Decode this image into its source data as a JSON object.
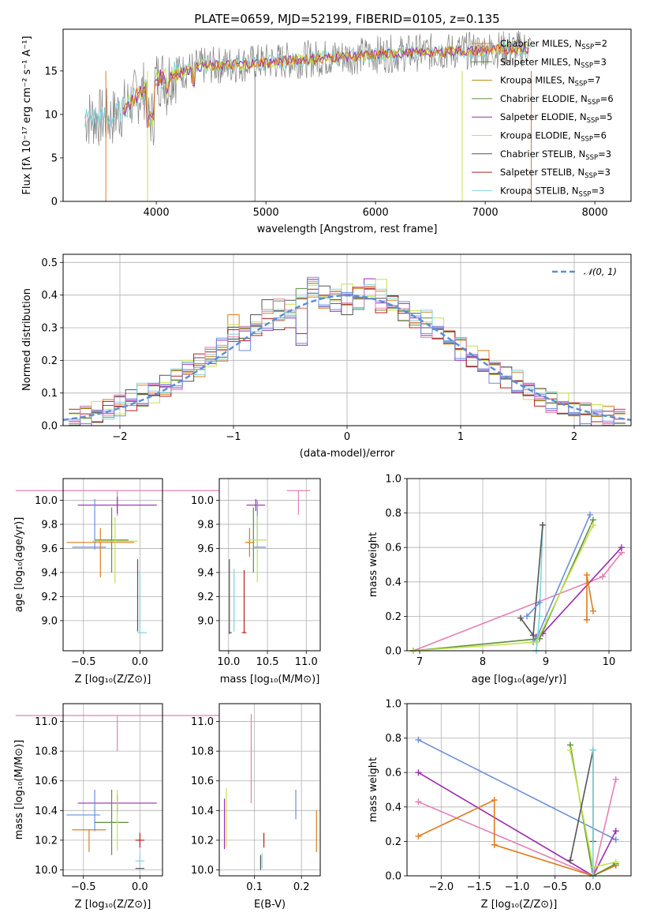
{
  "title": "PLATE=0659, MJD=52199, FIBERID=0105, z=0.135",
  "colors": [
    "#e07b1a",
    "#5f8f3a",
    "#9a2cae",
    "#c3e34a",
    "#555555",
    "#b81d1d",
    "#7fd3dc",
    "#e67fb5",
    "#6a8fde"
  ],
  "spectrum": {
    "xlabel": "wavelength [Angstrom, rest frame]",
    "ylabel": "Flux [fλ 10⁻¹⁷ erg cm⁻² s⁻¹ A⁻¹]",
    "xlim": [
      3150,
      8330
    ],
    "ylim": [
      0,
      19.8
    ],
    "xticks": [
      4000,
      5000,
      6000,
      7000,
      8000
    ],
    "yticks": [
      0,
      5,
      10,
      15
    ],
    "legend": [
      {
        "base": "Chabrier MILES, N",
        "sub": "SSP",
        "tail": "=2",
        "color": "#e07b1a"
      },
      {
        "base": "Salpeter MILES, N",
        "sub": "SSP",
        "tail": "=3",
        "color": "#5f8f3a"
      },
      {
        "base": "Kroupa MILES, N",
        "sub": "SSP",
        "tail": "=7",
        "color": "#b8860b"
      },
      {
        "base": "Chabrier ELODIE, N",
        "sub": "SSP",
        "tail": "=6",
        "color": "#5f8f3a"
      },
      {
        "base": "Salpeter ELODIE, N",
        "sub": "SSP",
        "tail": "=5",
        "color": "#9a2cae"
      },
      {
        "base": "Kroupa ELODIE, N",
        "sub": "SSP",
        "tail": "=6",
        "color": "#c3e34a"
      },
      {
        "base": "Chabrier STELIB, N",
        "sub": "SSP",
        "tail": "=3",
        "color": "#555555"
      },
      {
        "base": "Salpeter STELIB, N",
        "sub": "SSP",
        "tail": "=3",
        "color": "#b81d1d"
      },
      {
        "base": "Kroupa STELIB, N",
        "sub": "SSP",
        "tail": "=3",
        "color": "#7fd3dc"
      }
    ],
    "spikes": [
      {
        "x": 3540,
        "color": "#e07b1a"
      },
      {
        "x": 3920,
        "color": "#c3e34a"
      },
      {
        "x": 4900,
        "color": "#888888"
      },
      {
        "x": 6790,
        "color": "#c3e34a"
      },
      {
        "x": 7420,
        "color": "#e07b1a"
      }
    ]
  },
  "histogram": {
    "xlabel": "(data-model)/error",
    "ylabel": "Normed distribution",
    "xlim": [
      -2.5,
      2.5
    ],
    "ylim": [
      0,
      0.525
    ],
    "xticks": [
      -2,
      -1,
      0,
      1,
      2
    ],
    "yticks": [
      0.0,
      0.1,
      0.2,
      0.3,
      0.4,
      0.5
    ],
    "legend_label": "𝒩(0, 1)",
    "gauss_color": "#5b8fd6",
    "centers": [
      -2.4,
      -2.3,
      -2.2,
      -2.1,
      -2.0,
      -1.9,
      -1.8,
      -1.7,
      -1.6,
      -1.5,
      -1.4,
      -1.3,
      -1.2,
      -1.1,
      -1.0,
      -0.9,
      -0.8,
      -0.7,
      -0.6,
      -0.5,
      -0.4,
      -0.3,
      -0.2,
      -0.1,
      0.0,
      0.1,
      0.2,
      0.3,
      0.4,
      0.5,
      0.6,
      0.7,
      0.8,
      0.9,
      1.0,
      1.1,
      1.2,
      1.3,
      1.4,
      1.5,
      1.6,
      1.7,
      1.8,
      1.9,
      2.0,
      2.1,
      2.2,
      2.3,
      2.4
    ],
    "series": [
      [
        0.03,
        0.04,
        0.05,
        0.05,
        0.06,
        0.08,
        0.1,
        0.1,
        0.12,
        0.15,
        0.17,
        0.18,
        0.2,
        0.21,
        0.31,
        0.29,
        0.3,
        0.32,
        0.35,
        0.36,
        0.37,
        0.4,
        0.39,
        0.4,
        0.41,
        0.39,
        0.42,
        0.43,
        0.36,
        0.35,
        0.34,
        0.33,
        0.3,
        0.28,
        0.25,
        0.22,
        0.2,
        0.18,
        0.16,
        0.14,
        0.11,
        0.1,
        0.08,
        0.07,
        0.06,
        0.05,
        0.04,
        0.03,
        0.03
      ],
      [
        0.02,
        0.03,
        0.04,
        0.05,
        0.07,
        0.08,
        0.09,
        0.11,
        0.13,
        0.14,
        0.16,
        0.19,
        0.21,
        0.24,
        0.29,
        0.28,
        0.31,
        0.38,
        0.37,
        0.36,
        0.39,
        0.43,
        0.41,
        0.38,
        0.37,
        0.38,
        0.4,
        0.36,
        0.39,
        0.34,
        0.32,
        0.3,
        0.29,
        0.27,
        0.24,
        0.21,
        0.19,
        0.17,
        0.15,
        0.13,
        0.11,
        0.09,
        0.07,
        0.06,
        0.05,
        0.04,
        0.03,
        0.02,
        0.02
      ],
      [
        0.02,
        0.03,
        0.03,
        0.05,
        0.06,
        0.07,
        0.08,
        0.1,
        0.12,
        0.14,
        0.17,
        0.19,
        0.22,
        0.25,
        0.27,
        0.26,
        0.3,
        0.31,
        0.3,
        0.33,
        0.27,
        0.43,
        0.37,
        0.38,
        0.39,
        0.4,
        0.42,
        0.37,
        0.38,
        0.35,
        0.33,
        0.3,
        0.28,
        0.26,
        0.23,
        0.2,
        0.18,
        0.16,
        0.14,
        0.12,
        0.1,
        0.09,
        0.07,
        0.05,
        0.04,
        0.03,
        0.03,
        0.02,
        0.02
      ]
    ]
  },
  "age_z": {
    "xlabel": "Z [log₁₀(Z/Z⊙)]",
    "ylabel": "age [log₁₀(age/yr)]",
    "xlim": [
      -0.68,
      0.2
    ],
    "ylim": [
      8.75,
      10.18
    ],
    "xticks": [
      -0.5,
      0.0
    ],
    "xticklabels": [
      "−0.5",
      "0.0"
    ],
    "yticks": [
      9.0,
      9.2,
      9.4,
      9.6,
      9.8,
      10.0
    ],
    "yticklabels": [
      "9.0",
      "9.2",
      "9.4",
      "9.6",
      "9.8",
      "10.0"
    ],
    "errorbars": [
      {
        "x": -0.2,
        "xerr": 0.9,
        "y": 10.08,
        "yerr": [
          0.21,
          0.0
        ],
        "color": "#e67fb5"
      },
      {
        "x": -0.2,
        "xerr": 0.35,
        "y": 9.96,
        "yerr": [
          0.07,
          0.07
        ],
        "color": "#9a2cae"
      },
      {
        "x": -0.4,
        "xerr": 0.0,
        "y": 9.8,
        "yerr": [
          0.21,
          0.21
        ],
        "color": "#6a8fde"
      },
      {
        "x": -0.25,
        "xerr": 0.15,
        "y": 9.67,
        "yerr": [
          0.27,
          0.27
        ],
        "color": "#5f8f3a"
      },
      {
        "x": -0.35,
        "xerr": 0.3,
        "y": 9.65,
        "yerr": [
          0.29,
          0.12
        ],
        "color": "#e07b1a"
      },
      {
        "x": -0.22,
        "xerr": 0.2,
        "y": 9.66,
        "yerr": [
          0.35,
          0.2
        ],
        "color": "#c3e34a"
      },
      {
        "x": -0.45,
        "xerr": 0.15,
        "y": 9.61,
        "yerr": [
          0.0,
          0.0
        ],
        "color": "#6a8fde"
      },
      {
        "x": -0.02,
        "xerr": 0.0,
        "y": 9.2,
        "yerr": [
          0.29,
          0.31
        ],
        "color": "#555555"
      },
      {
        "x": 0.0,
        "xerr": 0.0,
        "y": 9.16,
        "yerr": [
          0.26,
          0.26
        ],
        "color": "#7fd3dc"
      },
      {
        "x": 0.02,
        "xerr": 0.0,
        "y": 8.9,
        "yerr": [
          0.0,
          0.0
        ],
        "color": "#7fd3dc"
      }
    ]
  },
  "age_mass": {
    "xlabel": "mass [log₁₀(M/M⊙)]",
    "ylabel": "",
    "xlim": [
      9.88,
      11.18
    ],
    "ylim": [
      8.75,
      10.18
    ],
    "xticks": [
      10.0,
      10.5,
      11.0
    ],
    "xticklabels": [
      "10.0",
      "10.5",
      "11.0"
    ],
    "yticks": [
      9.0,
      9.2,
      9.4,
      9.6,
      9.8,
      10.0
    ],
    "yticklabels": [
      "9.0",
      "9.2",
      "9.4",
      "9.6",
      "9.8",
      "10.0"
    ],
    "errorbars": [
      {
        "x": 10.9,
        "xerr": 0.15,
        "y": 10.08,
        "yerr": [
          0.2,
          0.0
        ],
        "color": "#e67fb5"
      },
      {
        "x": 10.35,
        "xerr": 0.12,
        "y": 9.96,
        "yerr": [
          0.05,
          0.05
        ],
        "color": "#9a2cae"
      },
      {
        "x": 10.37,
        "xerr": 0.0,
        "y": 9.8,
        "yerr": [
          0.2,
          0.2
        ],
        "color": "#6a8fde"
      },
      {
        "x": 10.32,
        "xerr": 0.0,
        "y": 9.67,
        "yerr": [
          0.27,
          0.27
        ],
        "color": "#5f8f3a"
      },
      {
        "x": 10.27,
        "xerr": 0.06,
        "y": 9.65,
        "yerr": [
          0.12,
          0.12
        ],
        "color": "#e07b1a"
      },
      {
        "x": 10.37,
        "xerr": 0.12,
        "y": 9.67,
        "yerr": [
          0.35,
          0.2
        ],
        "color": "#c3e34a"
      },
      {
        "x": 10.4,
        "xerr": 0.08,
        "y": 9.61,
        "yerr": [
          0.0,
          0.0
        ],
        "color": "#6a8fde"
      },
      {
        "x": 10.01,
        "xerr": 0.0,
        "y": 9.2,
        "yerr": [
          0.31,
          0.31
        ],
        "color": "#555555"
      },
      {
        "x": 10.07,
        "xerr": 0.0,
        "y": 9.17,
        "yerr": [
          0.26,
          0.26
        ],
        "color": "#7fd3dc"
      },
      {
        "x": 10.2,
        "xerr": 0.03,
        "y": 8.9,
        "yerr": [
          0.0,
          0.52
        ],
        "color": "#b81d1d"
      },
      {
        "x": 10.02,
        "xerr": 0.02,
        "y": 8.9,
        "yerr": [
          0.0,
          0.0
        ],
        "color": "#555555"
      }
    ]
  },
  "weight_age": {
    "xlabel": "age [log₁₀(age/yr)]",
    "ylabel": "mass weight",
    "xlim": [
      6.8,
      10.35
    ],
    "ylim": [
      0,
      1
    ],
    "xticks": [
      7,
      8,
      9,
      10
    ],
    "xticklabels": [
      "7",
      "8",
      "9",
      "10"
    ],
    "yticks": [
      0,
      0.2,
      0.4,
      0.6,
      0.8,
      1.0
    ],
    "yticklabels": [
      "0.0",
      "0.2",
      "0.4",
      "0.6",
      "0.8",
      "1.0"
    ],
    "series": [
      {
        "color": "#e67fb5",
        "points": [
          [
            6.9,
            0.0
          ],
          [
            9.9,
            0.43
          ],
          [
            10.2,
            0.57
          ]
        ]
      },
      {
        "color": "#9a2cae",
        "points": [
          [
            8.85,
            0.08
          ],
          [
            8.95,
            0.1
          ],
          [
            10.2,
            0.6
          ]
        ]
      },
      {
        "color": "#e07b1a",
        "points": [
          [
            9.65,
            0.18
          ],
          [
            9.65,
            0.44
          ],
          [
            9.75,
            0.23
          ]
        ]
      },
      {
        "color": "#6a8fde",
        "points": [
          [
            8.8,
            0.05
          ],
          [
            8.85,
            0.07
          ],
          [
            9.7,
            0.79
          ]
        ]
      },
      {
        "color": "#5f8f3a",
        "points": [
          [
            6.9,
            0.0
          ],
          [
            8.9,
            0.07
          ],
          [
            9.75,
            0.76
          ]
        ]
      },
      {
        "color": "#c3e34a",
        "points": [
          [
            6.9,
            0.0
          ],
          [
            8.85,
            0.05
          ],
          [
            9.75,
            0.73
          ]
        ]
      },
      {
        "color": "#7fd3dc",
        "points": [
          [
            8.85,
            0.0
          ],
          [
            8.9,
            0.2
          ],
          [
            8.95,
            0.73
          ]
        ]
      },
      {
        "color": "#555555",
        "points": [
          [
            8.6,
            0.19
          ],
          [
            8.8,
            0.09
          ],
          [
            8.95,
            0.73
          ]
        ]
      },
      {
        "color": "#6a8fde",
        "points": [
          [
            8.7,
            0.2
          ],
          [
            8.9,
            0.28
          ]
        ]
      }
    ]
  },
  "mass_z": {
    "xlabel": "Z [log₁₀(Z/Z⊙)]",
    "ylabel": "mass [log₁₀(M/M⊙)]",
    "xlim": [
      -0.68,
      0.2
    ],
    "ylim": [
      9.96,
      11.12
    ],
    "xticks": [
      -0.5,
      0.0
    ],
    "xticklabels": [
      "−0.5",
      "0.0"
    ],
    "yticks": [
      10.0,
      10.2,
      10.4,
      10.6,
      10.8,
      11.0
    ],
    "yticklabels": [
      "10.0",
      "10.2",
      "10.4",
      "10.6",
      "10.8",
      "11.0"
    ],
    "errorbars": [
      {
        "x": -0.2,
        "xerr": 0.9,
        "y": 11.04,
        "yerr": [
          0.24,
          0.0
        ],
        "color": "#e67fb5"
      },
      {
        "x": -0.2,
        "xerr": 0.35,
        "y": 10.45,
        "yerr": [
          0.06,
          0.06
        ],
        "color": "#9a2cae"
      },
      {
        "x": -0.4,
        "xerr": 0.0,
        "y": 10.4,
        "yerr": [
          0.14,
          0.14
        ],
        "color": "#6a8fde"
      },
      {
        "x": -0.5,
        "xerr": 0.15,
        "y": 10.37,
        "yerr": [
          0.0,
          0.0
        ],
        "color": "#6a8fde"
      },
      {
        "x": -0.45,
        "xerr": 0.15,
        "y": 10.27,
        "yerr": [
          0.15,
          0.0
        ],
        "color": "#e07b1a"
      },
      {
        "x": -0.25,
        "xerr": 0.15,
        "y": 10.32,
        "yerr": [
          0.22,
          0.22
        ],
        "color": "#5f8f3a"
      },
      {
        "x": -0.2,
        "xerr": 0.0,
        "y": 10.3,
        "yerr": [
          0.17,
          0.24
        ],
        "color": "#c3e34a"
      },
      {
        "x": 0.0,
        "xerr": 0.04,
        "y": 10.2,
        "yerr": [
          0.05,
          0.05
        ],
        "color": "#b81d1d"
      },
      {
        "x": 0.0,
        "xerr": 0.04,
        "y": 10.06,
        "yerr": [
          0.06,
          0.05
        ],
        "color": "#7fd3dc"
      },
      {
        "x": 0.0,
        "xerr": 0.04,
        "y": 10.01,
        "yerr": [
          0.0,
          0.0
        ],
        "color": "#555555"
      }
    ]
  },
  "mass_ebv": {
    "xlabel": "E(B-V)",
    "ylabel": "",
    "xlim": [
      0.025,
      0.24
    ],
    "ylim": [
      9.96,
      11.12
    ],
    "xticks": [
      0.1,
      0.2
    ],
    "xticklabels": [
      "0.1",
      "0.2"
    ],
    "yticks": [
      10.0,
      10.2,
      10.4,
      10.6,
      10.8,
      11.0
    ],
    "yticklabels": [
      "10.0",
      "10.2",
      "10.4",
      "10.6",
      "10.8",
      "11.0"
    ],
    "errorbars": [
      {
        "x": 0.093,
        "xerr": 0.0,
        "y": 10.75,
        "yerr": [
          0.3,
          0.3
        ],
        "color": "#e67fb5"
      },
      {
        "x": 0.188,
        "xerr": 0.0,
        "y": 10.44,
        "yerr": [
          0.1,
          0.1
        ],
        "color": "#6a8fde"
      },
      {
        "x": 0.232,
        "xerr": 0.0,
        "y": 10.26,
        "yerr": [
          0.14,
          0.14
        ],
        "color": "#e07b1a"
      },
      {
        "x": 0.04,
        "xerr": 0.0,
        "y": 10.35,
        "yerr": [
          0.2,
          0.2
        ],
        "color": "#c3e34a"
      },
      {
        "x": 0.036,
        "xerr": 0.0,
        "y": 10.31,
        "yerr": [
          0.17,
          0.17
        ],
        "color": "#9a2cae"
      },
      {
        "x": 0.12,
        "xerr": 0.0,
        "y": 10.2,
        "yerr": [
          0.05,
          0.05
        ],
        "color": "#b81d1d"
      },
      {
        "x": 0.116,
        "xerr": 0.0,
        "y": 10.06,
        "yerr": [
          0.05,
          0.05
        ],
        "color": "#7fd3dc"
      },
      {
        "x": 0.113,
        "xerr": 0.0,
        "y": 10.05,
        "yerr": [
          0.05,
          0.05
        ],
        "color": "#555555"
      }
    ]
  },
  "weight_z": {
    "xlabel": "Z [log₁₀(Z/Z⊙)]",
    "ylabel": "mass weight",
    "xlim": [
      -2.45,
      0.5
    ],
    "ylim": [
      0,
      1
    ],
    "xticks": [
      -2.0,
      -1.5,
      -1.0,
      -0.5,
      0.0
    ],
    "xticklabels": [
      "−2.0",
      "−1.5",
      "−1.0",
      "−0.5",
      "0.0"
    ],
    "yticks": [
      0,
      0.2,
      0.4,
      0.6,
      0.8,
      1.0
    ],
    "yticklabels": [
      "0.0",
      "0.2",
      "0.4",
      "0.6",
      "0.8",
      "1.0"
    ],
    "series": [
      {
        "color": "#6a8fde",
        "points": [
          [
            -2.3,
            0.79
          ],
          [
            0.3,
            0.21
          ]
        ]
      },
      {
        "color": "#9a2cae",
        "points": [
          [
            -2.3,
            0.6
          ],
          [
            0.0,
            0.0
          ],
          [
            0.3,
            0.26
          ]
        ]
      },
      {
        "color": "#e67fb5",
        "points": [
          [
            -2.3,
            0.43
          ],
          [
            0.0,
            0.0
          ],
          [
            0.3,
            0.56
          ]
        ]
      },
      {
        "color": "#e07b1a",
        "points": [
          [
            -2.3,
            0.23
          ],
          [
            -1.3,
            0.44
          ],
          [
            -1.3,
            0.18
          ],
          [
            0.0,
            0.0
          ],
          [
            0.3,
            0.06
          ]
        ]
      },
      {
        "color": "#5f8f3a",
        "points": [
          [
            -0.3,
            0.76
          ],
          [
            0.0,
            0.0
          ],
          [
            0.3,
            0.07
          ]
        ]
      },
      {
        "color": "#c3e34a",
        "points": [
          [
            -0.3,
            0.73
          ],
          [
            0.0,
            0.05
          ],
          [
            0.3,
            0.08
          ]
        ]
      },
      {
        "color": "#555555",
        "points": [
          [
            -0.3,
            0.09
          ],
          [
            0.0,
            0.73
          ],
          [
            0.0,
            0.2
          ]
        ]
      },
      {
        "color": "#7fd3dc",
        "points": [
          [
            0.0,
            0.0
          ],
          [
            0.0,
            0.73
          ]
        ]
      }
    ]
  }
}
